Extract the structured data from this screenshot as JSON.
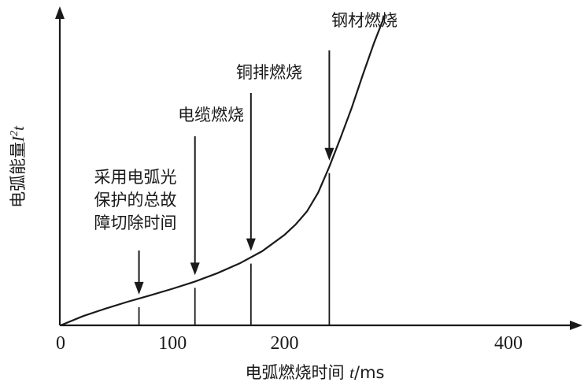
{
  "chart_data": {
    "type": "line",
    "xlabel": {
      "main": "电弧燃烧时间 ",
      "var": "t",
      "unit": "/ms"
    },
    "ylabel": {
      "main": "电弧能量",
      "var": "I",
      "sup": "2",
      "var2": "t"
    },
    "x_ticks": [
      "0",
      "100",
      "200",
      "400"
    ],
    "x_tick_values": [
      0,
      100,
      200,
      400
    ],
    "xlim": [
      0,
      400
    ],
    "ylim": [
      0,
      1
    ],
    "curve": {
      "x": [
        0,
        20,
        40,
        60,
        80,
        100,
        120,
        140,
        160,
        180,
        200,
        210,
        220,
        230,
        240,
        250,
        260,
        270,
        280,
        290
      ],
      "y": [
        0,
        0.032,
        0.058,
        0.082,
        0.104,
        0.127,
        0.152,
        0.181,
        0.215,
        0.257,
        0.314,
        0.35,
        0.395,
        0.46,
        0.55,
        0.65,
        0.755,
        0.87,
        0.98,
        1.08
      ]
    },
    "annotations": [
      {
        "lines": [
          "采用电弧光",
          "保护的总故",
          "障切除时间"
        ],
        "x": 70,
        "y": 0.085
      },
      {
        "lines": [
          "电缆燃烧"
        ],
        "x": 120,
        "y": 0.152
      },
      {
        "lines": [
          "铜排燃烧"
        ],
        "x": 170,
        "y": 0.236
      },
      {
        "lines": [
          "钢材燃烧"
        ],
        "x": 240,
        "y": 0.55
      }
    ],
    "grid": false,
    "legend": "none"
  }
}
